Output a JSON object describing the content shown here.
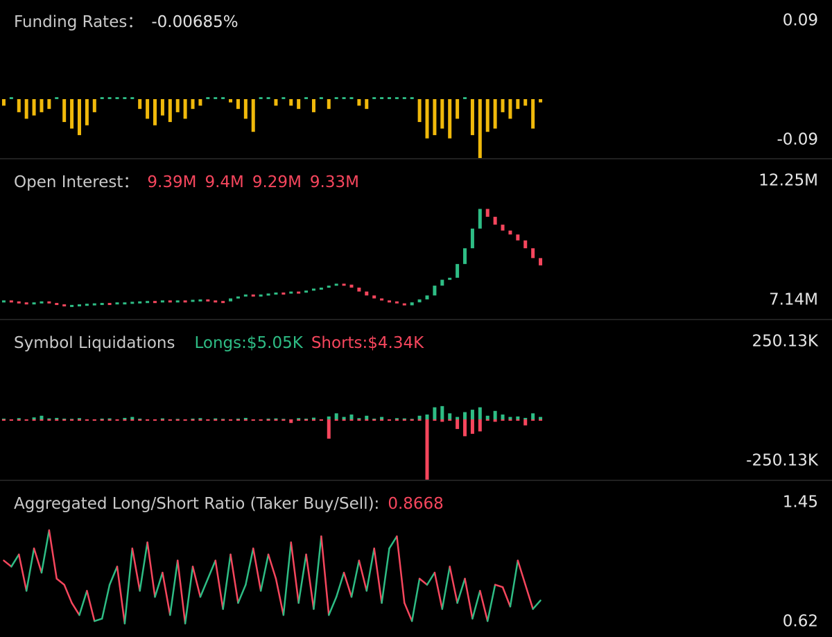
{
  "chart_data": [
    {
      "type": "bar",
      "title": "Funding Rates：",
      "header": [
        {
          "text": "-0.00685%",
          "color": "#e0e0e0"
        }
      ],
      "up_color": "#2ebd85",
      "down_color": "#f0b90b",
      "values": [
        -0.01,
        0.003,
        -0.02,
        -0.03,
        -0.025,
        -0.02,
        -0.015,
        0.003,
        -0.035,
        -0.045,
        -0.055,
        -0.04,
        -0.02,
        0.003,
        0.003,
        0.003,
        0.003,
        0.003,
        -0.015,
        -0.03,
        -0.04,
        -0.025,
        -0.035,
        -0.02,
        -0.03,
        -0.015,
        -0.01,
        0.003,
        0.003,
        0.003,
        -0.005,
        -0.015,
        -0.03,
        -0.05,
        0.003,
        0.003,
        -0.01,
        0.003,
        -0.01,
        -0.015,
        0.003,
        -0.02,
        0.003,
        -0.015,
        0.003,
        0.003,
        0.003,
        -0.01,
        -0.015,
        0.003,
        0.003,
        0.003,
        0.003,
        0.003,
        0.003,
        -0.035,
        -0.06,
        -0.055,
        -0.045,
        -0.06,
        -0.03,
        0.003,
        -0.055,
        -0.09,
        -0.05,
        -0.045,
        -0.02,
        -0.03,
        -0.015,
        -0.01,
        -0.045,
        -0.005
      ],
      "ylim": [
        -0.09,
        0.09
      ],
      "yticks": [
        0.09,
        -0.09
      ]
    },
    {
      "type": "candlestick",
      "title": "Open Interest：",
      "header": [
        {
          "text": "9.39M",
          "color": "#f6465d"
        },
        {
          "text": "9.4M",
          "color": "#f6465d"
        },
        {
          "text": "9.29M",
          "color": "#f6465d"
        },
        {
          "text": "9.33M",
          "color": "#f6465d"
        }
      ],
      "up_color": "#2ebd85",
      "down_color": "#f6465d",
      "values": [
        7.55,
        7.5,
        7.45,
        7.4,
        7.45,
        7.5,
        7.42,
        7.35,
        7.3,
        7.32,
        7.35,
        7.38,
        7.4,
        7.42,
        7.4,
        7.45,
        7.45,
        7.48,
        7.5,
        7.52,
        7.5,
        7.55,
        7.52,
        7.55,
        7.5,
        7.58,
        7.6,
        7.55,
        7.52,
        7.5,
        7.65,
        7.75,
        7.85,
        7.8,
        7.85,
        7.9,
        7.95,
        7.9,
        8.0,
        7.95,
        8.05,
        8.15,
        8.2,
        8.3,
        8.4,
        8.35,
        8.2,
        8.0,
        7.8,
        7.65,
        7.55,
        7.5,
        7.4,
        7.3,
        7.45,
        7.6,
        7.8,
        8.3,
        8.6,
        8.7,
        9.4,
        10.2,
        11.2,
        12.2,
        11.8,
        11.4,
        11.1,
        10.9,
        10.6,
        10.2,
        9.7,
        9.33
      ],
      "ylim": [
        7.14,
        12.25
      ],
      "yticks": [
        {
          "value": 12.25,
          "label": "12.25M"
        },
        {
          "value": 7.14,
          "label": "7.14M"
        }
      ]
    },
    {
      "type": "bar",
      "title": "Symbol Liquidations",
      "header": [
        {
          "text": "Longs:$5.05K",
          "color": "#2ebd85"
        },
        {
          "text": "Shorts:$4.34K",
          "color": "#f6465d"
        }
      ],
      "series": [
        {
          "color": "#2ebd85",
          "values": [
            3,
            0,
            5,
            0,
            8,
            15,
            4,
            6,
            3,
            2,
            5,
            0,
            0,
            3,
            4,
            0,
            6,
            10,
            3,
            0,
            0,
            4,
            0,
            2,
            0,
            3,
            5,
            0,
            4,
            2,
            0,
            3,
            6,
            0,
            0,
            3,
            4,
            2,
            0,
            5,
            3,
            7,
            0,
            12,
            25,
            10,
            20,
            5,
            15,
            3,
            10,
            0,
            5,
            4,
            2,
            15,
            20,
            50,
            55,
            25,
            10,
            30,
            40,
            50,
            15,
            35,
            20,
            10,
            12,
            6,
            25,
            10
          ]
        },
        {
          "color": "#f6465d",
          "values": [
            -3,
            -2,
            0,
            -5,
            0,
            -2,
            0,
            -3,
            -2,
            0,
            0,
            -4,
            -2,
            0,
            0,
            -3,
            -5,
            0,
            0,
            -2,
            0,
            0,
            -3,
            0,
            0,
            -2,
            0,
            -3,
            0,
            0,
            -2,
            0,
            0,
            -4,
            -2,
            0,
            0,
            -3,
            -15,
            0,
            0,
            0,
            -3,
            -80,
            -5,
            0,
            -3,
            0,
            -2,
            0,
            0,
            -3,
            0,
            -4,
            0,
            0,
            -250,
            -5,
            -10,
            -3,
            -40,
            -70,
            -60,
            -50,
            -5,
            -10,
            0,
            -3,
            0,
            -25,
            -3,
            0
          ]
        }
      ],
      "ylim": [
        -250.13,
        250.13
      ],
      "yticks": [
        {
          "value": 250.13,
          "label": "250.13K"
        },
        {
          "value": -250.13,
          "label": "-250.13K"
        }
      ]
    },
    {
      "type": "line",
      "title": "Aggregated Long/Short Ratio (Taker Buy/Sell):",
      "header": [
        {
          "text": "0.8668",
          "color": "#f6465d"
        }
      ],
      "up_color": "#2ebd85",
      "down_color": "#f6465d",
      "values": [
        1.2,
        1.15,
        1.25,
        0.95,
        1.3,
        1.1,
        1.45,
        1.05,
        1.0,
        0.85,
        0.75,
        0.95,
        0.7,
        0.72,
        1.0,
        1.15,
        0.68,
        1.3,
        0.95,
        1.35,
        0.9,
        1.1,
        0.75,
        1.2,
        0.68,
        1.15,
        0.9,
        1.05,
        1.2,
        0.8,
        1.25,
        0.85,
        1.0,
        1.3,
        0.95,
        1.25,
        1.05,
        0.75,
        1.35,
        0.85,
        1.25,
        0.8,
        1.4,
        0.75,
        0.9,
        1.1,
        0.9,
        1.2,
        0.95,
        1.3,
        0.85,
        1.3,
        1.4,
        0.85,
        0.7,
        1.05,
        1.0,
        1.1,
        0.8,
        1.15,
        0.85,
        1.05,
        0.72,
        0.95,
        0.7,
        1.0,
        0.98,
        0.82,
        1.2,
        1.0,
        0.8,
        0.87
      ],
      "ylim": [
        0.62,
        1.45
      ],
      "yticks": [
        1.45,
        0.62
      ]
    }
  ]
}
